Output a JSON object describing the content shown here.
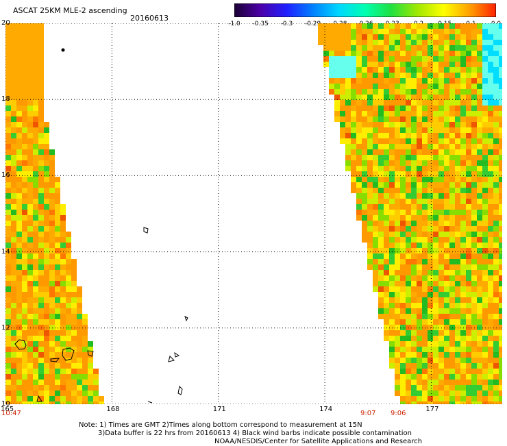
{
  "header": {
    "title": "ASCAT 25KM MLE-2 ascending",
    "date": "20160613"
  },
  "colorbar": {
    "labels": [
      "-1.0",
      "-0.35",
      "-0.3",
      "-0.29",
      "-0.28",
      "-0.26",
      "-0.23",
      "-0.2",
      "-0.15",
      "-0.1",
      "0.0"
    ],
    "colors": [
      "#1a0033",
      "#4b00a8",
      "#2020ff",
      "#0080ff",
      "#00d8ff",
      "#00ffb0",
      "#20e040",
      "#a0e800",
      "#ffff00",
      "#ffa000",
      "#ff2000"
    ]
  },
  "map": {
    "lat_labels": [
      "20",
      "18",
      "16",
      "14",
      "12",
      "10"
    ],
    "lon_labels": [
      "165",
      "168",
      "171",
      "174",
      "177"
    ],
    "lon_range": [
      165,
      179
    ],
    "lat_range": [
      10,
      20
    ],
    "gridlines": "dotted",
    "swath_colors": [
      "#ff9900",
      "#ffaa00",
      "#ffcc00",
      "#ffee00",
      "#ccee00",
      "#88dd00",
      "#33cc33",
      "#22bb22",
      "#ff7700",
      "#ee5500"
    ],
    "missing_color": "#ffffff"
  },
  "times": {
    "left": "10:47",
    "right1": "9:07",
    "right2": "9:06"
  },
  "notes": {
    "line1": "Note: 1) Times are GMT 2)Times along bottom correspond to measurement at 15N",
    "line2": "3)Data buffer is 22 hrs from 20160613 4) Black wind barbs indicate possible contamination",
    "line3": "NOAA/NESDIS/Center for Satellite Applications and Research"
  }
}
